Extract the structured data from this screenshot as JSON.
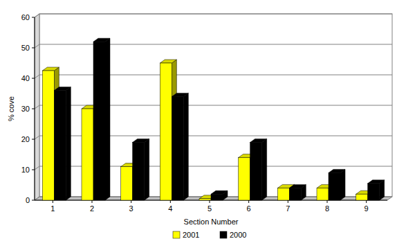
{
  "chart_data": {
    "type": "bar",
    "x_label": "Section Number",
    "y_label": "% cove",
    "categories": [
      "1",
      "2",
      "3",
      "4",
      "5",
      "6",
      "7",
      "8",
      "9"
    ],
    "series": [
      {
        "name": "2001",
        "color": "#ffff00",
        "values": [
          42.5,
          30,
          11,
          45,
          0.5,
          14,
          4,
          4,
          2
        ]
      },
      {
        "name": "2000",
        "color": "#000000",
        "values": [
          36,
          52,
          19,
          34,
          2,
          19,
          4,
          9,
          5.5
        ]
      }
    ],
    "ylim": [
      0,
      60
    ],
    "yticks": [
      0,
      10,
      20,
      30,
      40,
      50,
      60
    ],
    "grid": true,
    "legend": "bottom"
  }
}
